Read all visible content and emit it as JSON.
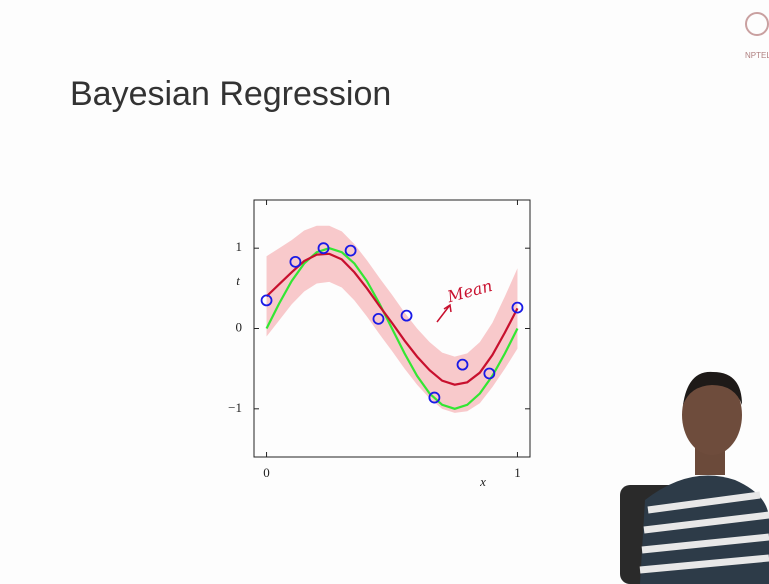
{
  "chart_data": {
    "type": "scatter",
    "title": "Bayesian Regression",
    "logo": "NPTEL",
    "xlabel": "x",
    "ylabel": "t",
    "annotation": "Mean",
    "xlim": [
      -0.05,
      1.05
    ],
    "ylim": [
      -1.6,
      1.6
    ],
    "xticks": [
      0,
      1
    ],
    "yticks": [
      {
        "value": -1,
        "label": "−1"
      },
      0,
      1
    ],
    "points": {
      "color": "#1a1ae6",
      "x": [
        0,
        0.115,
        0.227,
        0.335,
        0.446,
        0.558,
        0.669,
        0.781,
        0.888,
        1.0
      ],
      "y": [
        0.35,
        0.83,
        1.0,
        0.97,
        0.12,
        0.16,
        -0.86,
        -0.45,
        -0.56,
        0.26
      ]
    },
    "curve_x": [
      0,
      0.05,
      0.1,
      0.15,
      0.2,
      0.25,
      0.3,
      0.35,
      0.4,
      0.45,
      0.5,
      0.55,
      0.6,
      0.65,
      0.7,
      0.75,
      0.8,
      0.85,
      0.9,
      0.95,
      1
    ],
    "band": {
      "color": "#f8c9cb",
      "upper": [
        0.9,
        1.0,
        1.1,
        1.22,
        1.28,
        1.28,
        1.21,
        1.05,
        0.85,
        0.63,
        0.42,
        0.2,
        0,
        -0.17,
        -0.3,
        -0.35,
        -0.31,
        -0.17,
        0.07,
        0.4,
        0.75
      ],
      "lower": [
        -0.1,
        0.1,
        0.3,
        0.46,
        0.56,
        0.58,
        0.51,
        0.35,
        0.15,
        -0.07,
        -0.28,
        -0.5,
        -0.7,
        -0.87,
        -1,
        -1.05,
        -1.03,
        -0.93,
        -0.73,
        -0.5,
        -0.25
      ]
    },
    "series": [
      {
        "color": "#33e633",
        "values": [
          0,
          0.31,
          0.59,
          0.81,
          0.95,
          1,
          0.95,
          0.81,
          0.59,
          0.31,
          0,
          -0.31,
          -0.59,
          -0.81,
          -0.95,
          -1,
          -0.95,
          -0.81,
          -0.59,
          -0.31,
          0
        ]
      },
      {
        "color": "#c8102e",
        "values": [
          0.4,
          0.55,
          0.7,
          0.84,
          0.92,
          0.93,
          0.86,
          0.7,
          0.5,
          0.28,
          0.07,
          -0.15,
          -0.35,
          -0.52,
          -0.65,
          -0.7,
          -0.67,
          -0.55,
          -0.33,
          -0.05,
          0.25
        ]
      }
    ]
  }
}
